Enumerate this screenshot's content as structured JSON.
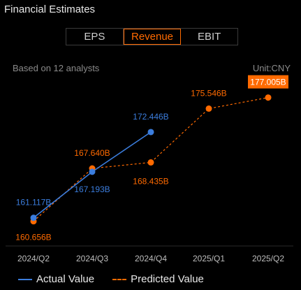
{
  "header": {
    "title": "Financial Estimates"
  },
  "tabs": [
    {
      "label": "EPS",
      "active": false
    },
    {
      "label": "Revenue",
      "active": true
    },
    {
      "label": "EBIT",
      "active": false
    }
  ],
  "info": {
    "analysts": "Based on 12 analysts",
    "unit": "Unit:CNY"
  },
  "legend": {
    "actual": "Actual Value",
    "predicted": "Predicted Value"
  },
  "colors": {
    "actual": "#3b7ddd",
    "predicted": "#ff6a00",
    "highlight_text": "#ffffff"
  },
  "chart_data": {
    "type": "line",
    "categories": [
      "2024/Q2",
      "2024/Q3",
      "2024/Q4",
      "2025/Q1",
      "2025/Q2"
    ],
    "ylim": [
      158.5,
      179
    ],
    "series": [
      {
        "name": "Actual Value",
        "values": [
          161.117,
          167.193,
          172.446,
          null,
          null
        ],
        "labels": [
          "161.117B",
          "167.193B",
          "172.446B",
          null,
          null
        ]
      },
      {
        "name": "Predicted Value",
        "values": [
          160.656,
          167.64,
          168.435,
          175.546,
          177.005
        ],
        "labels": [
          "160.656B",
          "167.640B",
          "168.435B",
          "175.546B",
          "177.005B"
        ],
        "highlight_last": true
      }
    ]
  }
}
